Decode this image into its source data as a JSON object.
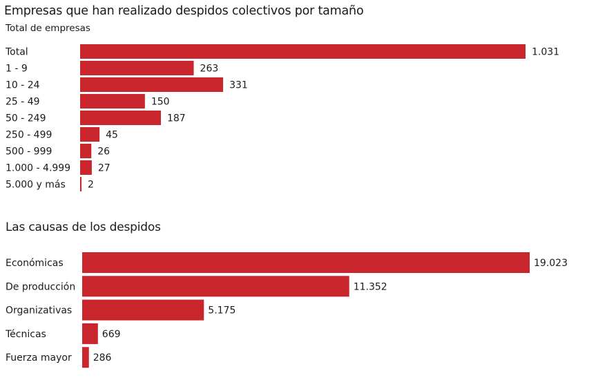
{
  "chart_data": [
    {
      "type": "bar",
      "orientation": "horizontal",
      "title": "Empresas que han realizado despidos colectivos por tamaño",
      "subtitle": "Total de empresas",
      "categories": [
        "Total",
        "1 - 9",
        "10 - 24",
        "25 - 49",
        "50 - 249",
        "250 - 499",
        "500 - 999",
        "1.000 - 4.999",
        "5.000 y más"
      ],
      "values": [
        1031,
        263,
        331,
        150,
        187,
        45,
        26,
        27,
        2
      ],
      "labels": [
        "1.031",
        "263",
        "331",
        "150",
        "187",
        "45",
        "26",
        "27",
        "2"
      ],
      "xlabel": "",
      "ylabel": "",
      "xlim": [
        0,
        1031
      ],
      "grid": false,
      "color": "#c8262c"
    },
    {
      "type": "bar",
      "orientation": "horizontal",
      "title": "Las causas de los despidos",
      "categories": [
        "Económicas",
        "De producción",
        "Organizativas",
        "Técnicas",
        "Fuerza mayor"
      ],
      "values": [
        19023,
        11352,
        5175,
        669,
        286
      ],
      "labels": [
        "19.023",
        "11.352",
        "5.175",
        "669",
        "286"
      ],
      "xlabel": "",
      "ylabel": "",
      "xlim": [
        0,
        19023
      ],
      "grid": false,
      "color": "#c8262c"
    }
  ]
}
